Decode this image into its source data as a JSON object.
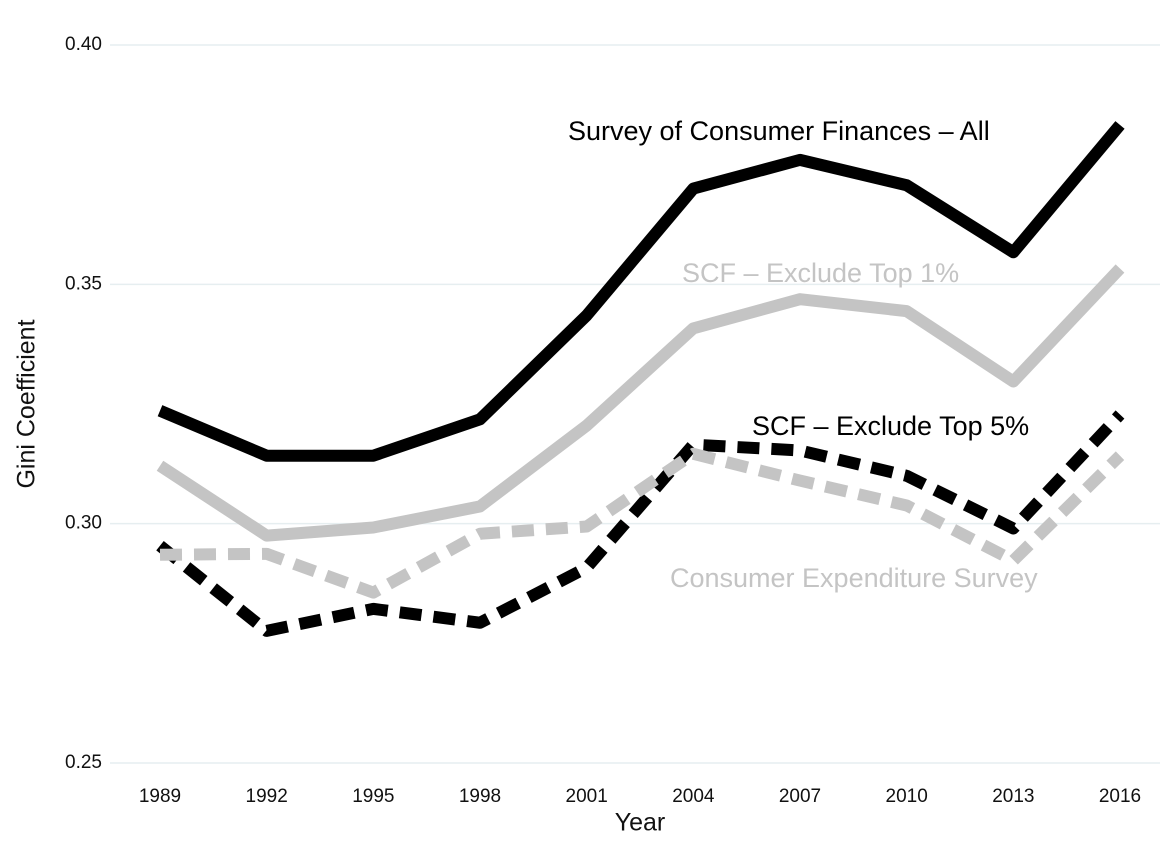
{
  "chart_data": {
    "type": "line",
    "x_label": "Year",
    "y_label": "Gini Coefficient",
    "categories": [
      "1989",
      "1992",
      "1995",
      "1998",
      "2001",
      "2004",
      "2007",
      "2010",
      "2013",
      "2016"
    ],
    "series": [
      {
        "name": "Survey of Consumer Finances – All",
        "color": "#000000",
        "dash": false,
        "values": [
          0.3236,
          0.3142,
          0.3142,
          0.3218,
          0.3435,
          0.37,
          0.376,
          0.3707,
          0.3567,
          0.3833
        ]
      },
      {
        "name": "SCF – Exclude Top 1%",
        "color": "#c4c4c4",
        "dash": false,
        "values": [
          0.3121,
          0.2975,
          0.2992,
          0.3036,
          0.3205,
          0.3408,
          0.3469,
          0.3444,
          0.3297,
          0.3533
        ]
      },
      {
        "name": "SCF – Exclude Top 5%",
        "color": "#000000",
        "dash": true,
        "values": [
          0.2954,
          0.2776,
          0.2822,
          0.2793,
          0.2908,
          0.3165,
          0.3153,
          0.31,
          0.299,
          0.3228
        ]
      },
      {
        "name": "Consumer Expenditure Survey",
        "color": "#c4c4c4",
        "dash": true,
        "values": [
          0.2935,
          0.2937,
          0.2856,
          0.2979,
          0.2994,
          0.3146,
          0.309,
          0.3038,
          0.2923,
          0.3142
        ]
      }
    ],
    "ylim": [
      0.25,
      0.4
    ],
    "yticks": [
      0.25,
      {
        "value": 0.3,
        "label": "0.30"
      },
      0.35,
      {
        "value": 0.4,
        "label": "0.40"
      }
    ],
    "grid": true
  }
}
